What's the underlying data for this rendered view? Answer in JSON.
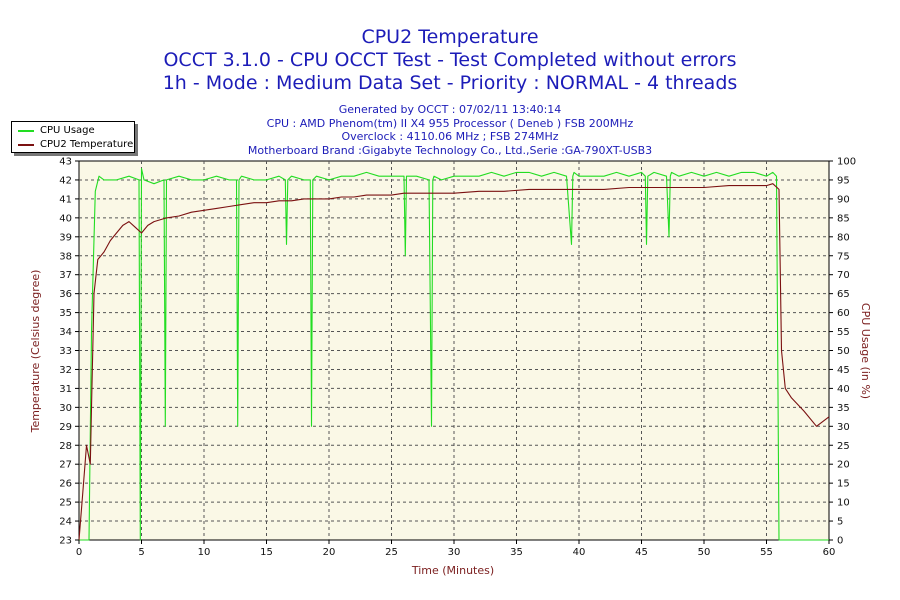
{
  "chart_data": {
    "type": "line",
    "title": "CPU2 Temperature",
    "subtitle_lines": [
      "OCCT 3.1.0 - CPU OCCT Test - Test Completed without errors",
      "1h - Mode : Medium Data Set - Priority : NORMAL - 4 threads"
    ],
    "info_lines": [
      "Generated by OCCT : 07/02/11 13:40:14",
      "CPU : AMD Phenom(tm) II X4 955 Processor ( Deneb ) FSB 200MHz",
      "Overclock : 4110.06 MHz ; FSB 274MHz",
      "Motherboard Brand :Gigabyte Technology Co., Ltd.,Serie :GA-790XT-USB3"
    ],
    "xlabel": "Time (Minutes)",
    "ylabel_left": "Temperature (Celsius degree)",
    "ylabel_right": "CPU Usage (in %)",
    "xlim": [
      0,
      60
    ],
    "ylim_left": [
      23,
      43
    ],
    "ylim_right": [
      0,
      100
    ],
    "x_ticks": [
      "0",
      "5",
      "10",
      "15",
      "20",
      "25",
      "30",
      "35",
      "40",
      "45",
      "50",
      "55",
      "60"
    ],
    "y_left_ticks": [
      "23",
      "24",
      "25",
      "26",
      "27",
      "28",
      "29",
      "30",
      "31",
      "32",
      "33",
      "34",
      "35",
      "36",
      "37",
      "38",
      "39",
      "40",
      "41",
      "42",
      "43"
    ],
    "y_right_ticks": [
      "0",
      "5",
      "10",
      "15",
      "20",
      "25",
      "30",
      "35",
      "40",
      "45",
      "50",
      "55",
      "60",
      "65",
      "70",
      "75",
      "80",
      "85",
      "90",
      "95",
      "100"
    ],
    "grid": true,
    "legend_position": "top-left",
    "series": [
      {
        "name": "CPU Usage",
        "axis": "right",
        "color": "#22dd22",
        "x": [
          0,
          0.8,
          1.0,
          1.3,
          1.6,
          2,
          3,
          4,
          4.8,
          4.9,
          5.0,
          5.2,
          6,
          6.8,
          6.9,
          7.0,
          8,
          9,
          10,
          11,
          12,
          12.6,
          12.7,
          12.8,
          13,
          14,
          15,
          16,
          16.5,
          16.6,
          16.7,
          17,
          18,
          18.5,
          18.6,
          18.7,
          19,
          20,
          21,
          22,
          23,
          24,
          25,
          26,
          26.1,
          26.2,
          27,
          28,
          28.2,
          28.3,
          28.4,
          29,
          30,
          31,
          32,
          33,
          34,
          35,
          36,
          37,
          38,
          39,
          39.4,
          39.5,
          39.6,
          40,
          41,
          42,
          43,
          44,
          45,
          45.3,
          45.4,
          45.5,
          46,
          47,
          47.2,
          47.3,
          47.4,
          48,
          49,
          50,
          51,
          52,
          53,
          54,
          55,
          55.5,
          55.8,
          56.0,
          56.2,
          56.5,
          57,
          58,
          59,
          60
        ],
        "values": [
          0,
          0,
          55,
          92,
          96,
          95,
          95,
          96,
          95,
          0,
          98,
          95,
          94,
          95,
          30,
          95,
          96,
          95,
          95,
          96,
          95,
          95,
          30,
          95,
          96,
          95,
          95,
          96,
          95,
          78,
          95,
          96,
          95,
          95,
          30,
          95,
          96,
          95,
          96,
          96,
          97,
          96,
          96,
          96,
          75,
          96,
          96,
          95,
          30,
          95,
          96,
          95,
          96,
          96,
          96,
          97,
          96,
          97,
          97,
          96,
          97,
          96,
          78,
          96,
          97,
          96,
          96,
          96,
          97,
          96,
          97,
          96,
          78,
          96,
          97,
          96,
          80,
          96,
          97,
          96,
          97,
          96,
          97,
          96,
          97,
          97,
          96,
          97,
          96,
          0,
          0,
          0,
          0,
          0,
          0,
          0
        ]
      },
      {
        "name": "CPU2 Temperature",
        "axis": "left",
        "color": "#7b1111",
        "x": [
          0,
          0.3,
          0.6,
          0.9,
          1.0,
          1.2,
          1.5,
          2,
          2.5,
          3,
          3.5,
          4,
          4.5,
          5,
          5.5,
          6,
          7,
          8,
          9,
          10,
          11,
          12,
          13,
          14,
          15,
          16,
          17,
          18,
          19,
          20,
          21,
          22,
          23,
          24,
          25,
          26,
          27,
          28,
          29,
          30,
          32,
          34,
          36,
          38,
          40,
          42,
          44,
          46,
          48,
          50,
          52,
          54,
          55,
          55.5,
          56.0,
          56.2,
          56.5,
          57,
          58,
          59,
          60
        ],
        "values": [
          23,
          25.5,
          28,
          27,
          30,
          36,
          37.8,
          38.2,
          38.8,
          39.2,
          39.6,
          39.8,
          39.5,
          39.2,
          39.6,
          39.8,
          40.0,
          40.1,
          40.3,
          40.4,
          40.5,
          40.6,
          40.7,
          40.8,
          40.8,
          40.9,
          40.9,
          41.0,
          41.0,
          41.0,
          41.1,
          41.1,
          41.2,
          41.2,
          41.2,
          41.3,
          41.3,
          41.3,
          41.3,
          41.3,
          41.4,
          41.4,
          41.5,
          41.5,
          41.5,
          41.5,
          41.6,
          41.6,
          41.6,
          41.6,
          41.7,
          41.7,
          41.7,
          41.8,
          41.5,
          33,
          31,
          30.5,
          29.8,
          29.0,
          29.5
        ]
      }
    ]
  }
}
